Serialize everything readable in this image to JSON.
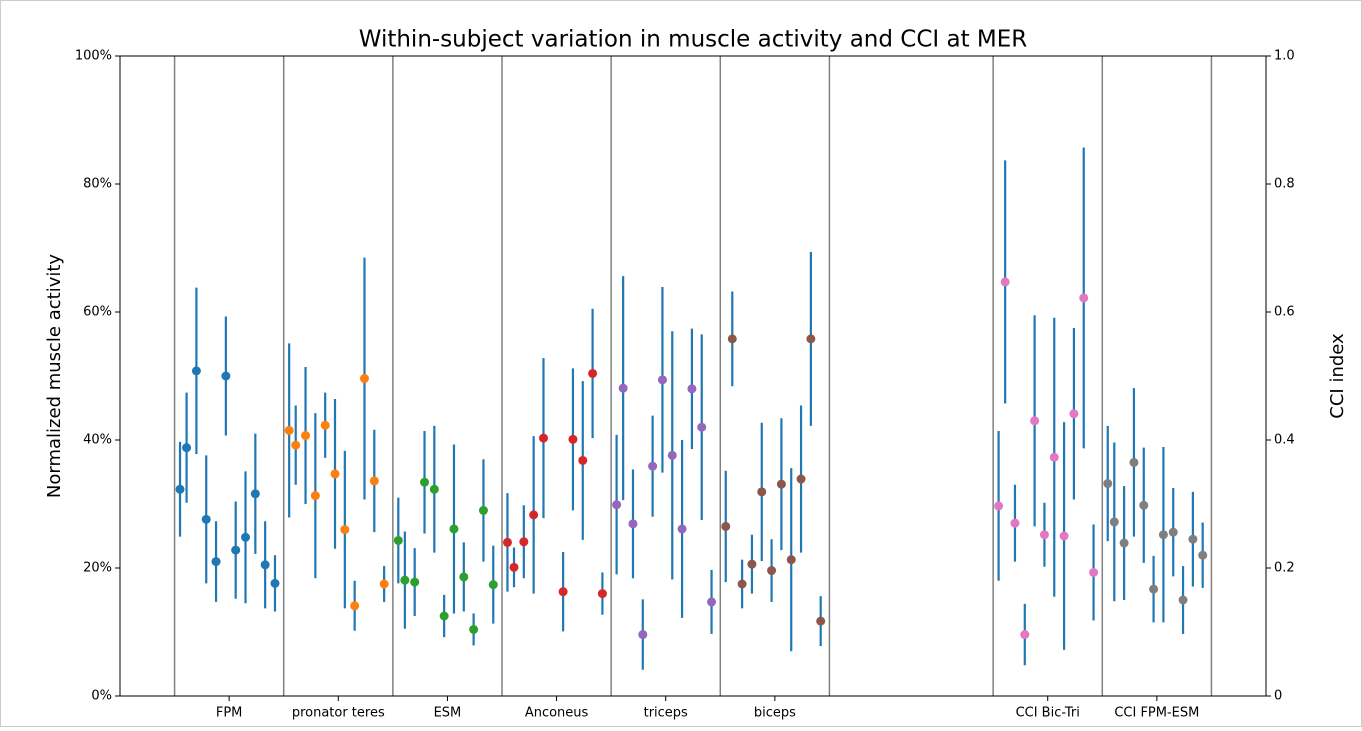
{
  "chart_data": {
    "type": "errorbar",
    "title": "Within-subject variation in muscle activity and CCI at MER",
    "ylabel": "Normalized muscle activity",
    "y2label": "CCI index",
    "xlim": [
      0,
      10.5
    ],
    "xticks": [
      {
        "value": 1,
        "label": "FPM"
      },
      {
        "value": 2,
        "label": "pronator teres"
      },
      {
        "value": 3,
        "label": "ESM"
      },
      {
        "value": 4,
        "label": "Anconeus"
      },
      {
        "value": 5,
        "label": "triceps"
      },
      {
        "value": 6,
        "label": "biceps"
      },
      {
        "value": 8.5,
        "label": "CCI Bic-Tri"
      },
      {
        "value": 9.5,
        "label": "CCI FPM-ESM"
      }
    ],
    "ylim": [
      0,
      100
    ],
    "yticks": [
      {
        "value": 0,
        "label": "0%"
      },
      {
        "value": 20,
        "label": "20%"
      },
      {
        "value": 40,
        "label": "40%"
      },
      {
        "value": 60,
        "label": "60%"
      },
      {
        "value": 80,
        "label": "80%"
      },
      {
        "value": 100,
        "label": "100%"
      }
    ],
    "y2lim": [
      0,
      1
    ],
    "y2ticks": [
      0,
      0.2,
      0.4,
      0.6,
      0.8,
      {
        "value": 1,
        "label": "1.0"
      }
    ],
    "vlines": [
      0.5,
      1.5,
      2.5,
      3.5,
      4.5,
      5.5,
      6.5,
      8,
      9,
      10
    ],
    "vline_color": "#808080",
    "error_color": "#1f77b4",
    "series": [
      {
        "color": "#1f77b4",
        "x": [
          0.55,
          0.61,
          0.7,
          0.79,
          0.88,
          0.97,
          1.06,
          1.15,
          1.24,
          1.33,
          1.42
        ],
        "values": [
          32.3,
          38.8,
          50.8,
          27.6,
          21,
          50,
          22.8,
          24.8,
          31.6,
          20.5,
          17.6
        ],
        "errors": [
          7.4,
          8.6,
          13,
          10,
          6.3,
          9.3,
          7.6,
          10.3,
          9.4,
          6.8,
          4.4
        ]
      },
      {
        "color": "#ff7f0e",
        "x": [
          1.55,
          1.61,
          1.7,
          1.79,
          1.88,
          1.97,
          2.06,
          2.15,
          2.24,
          2.33,
          2.42
        ],
        "values": [
          41.5,
          39.2,
          40.7,
          31.3,
          42.3,
          34.7,
          26,
          14.1,
          49.6,
          33.6,
          17.5
        ],
        "errors": [
          13.6,
          6.2,
          10.7,
          12.9,
          5.1,
          11.7,
          12.3,
          3.9,
          18.9,
          8,
          2.8
        ]
      },
      {
        "color": "#2ca02c",
        "x": [
          2.55,
          2.61,
          2.7,
          2.79,
          2.88,
          2.97,
          3.06,
          3.15,
          3.24,
          3.33,
          3.42
        ],
        "values": [
          24.3,
          18.1,
          17.8,
          33.4,
          32.3,
          12.5,
          26.1,
          18.6,
          10.4,
          29,
          17.4
        ],
        "errors": [
          6.7,
          7.6,
          5.3,
          8,
          9.9,
          3.3,
          13.2,
          5.4,
          2.5,
          8,
          6.1
        ]
      },
      {
        "color": "#d62728",
        "x": [
          3.55,
          3.61,
          3.7,
          3.79,
          3.88,
          3.97,
          4.06,
          4.15,
          4.24,
          4.33,
          4.42
        ],
        "values": [
          24,
          20.1,
          24.1,
          28.3,
          40.3,
          null,
          16.3,
          40.1,
          36.8,
          50.4,
          16
        ],
        "errors": [
          7.7,
          3.1,
          5.7,
          12.3,
          12.5,
          null,
          6.2,
          11.1,
          12.4,
          10.1,
          3.3
        ]
      },
      {
        "color": "#9467bd",
        "x": [
          4.55,
          4.61,
          4.7,
          4.79,
          4.88,
          4.97,
          5.06,
          5.15,
          5.24,
          5.33,
          5.42
        ],
        "values": [
          29.9,
          48.1,
          26.9,
          9.6,
          35.9,
          49.4,
          37.6,
          26.1,
          48,
          42,
          14.7
        ],
        "errors": [
          10.9,
          17.5,
          8.5,
          5.5,
          7.9,
          14.5,
          19.4,
          13.9,
          9.4,
          14.5,
          5
        ]
      },
      {
        "color": "#8c564b",
        "x": [
          5.55,
          5.61,
          5.7,
          5.79,
          5.88,
          5.97,
          6.06,
          6.15,
          6.24,
          6.33,
          6.42
        ],
        "values": [
          26.5,
          55.8,
          17.5,
          20.6,
          31.9,
          19.6,
          33.1,
          21.3,
          33.9,
          55.8,
          11.7
        ],
        "errors": [
          8.7,
          7.4,
          3.8,
          4.6,
          10.8,
          4.9,
          10.3,
          14.3,
          11.5,
          13.6,
          3.9
        ]
      },
      {
        "color": "#e377c2",
        "axis": "y2",
        "x": [
          8.05,
          8.11,
          8.2,
          8.29,
          8.38,
          8.47,
          8.56,
          8.65,
          8.74,
          8.83,
          8.92
        ],
        "values": [
          0.297,
          0.647,
          0.27,
          0.096,
          0.43,
          0.252,
          0.373,
          0.25,
          0.441,
          0.622,
          0.193
        ],
        "errors": [
          0.117,
          0.19,
          0.06,
          0.048,
          0.165,
          0.05,
          0.218,
          0.178,
          0.134,
          0.235,
          0.075
        ]
      },
      {
        "color": "#7f7f7f",
        "axis": "y2",
        "x": [
          9.05,
          9.11,
          9.2,
          9.29,
          9.38,
          9.47,
          9.56,
          9.65,
          9.74,
          9.83,
          9.92
        ],
        "values": [
          0.332,
          0.272,
          0.239,
          0.365,
          0.298,
          0.167,
          0.252,
          0.256,
          0.15,
          0.245,
          0.22
        ],
        "errors": [
          0.09,
          0.124,
          0.089,
          0.116,
          0.09,
          0.052,
          0.137,
          0.069,
          0.053,
          0.074,
          0.051
        ]
      }
    ]
  }
}
